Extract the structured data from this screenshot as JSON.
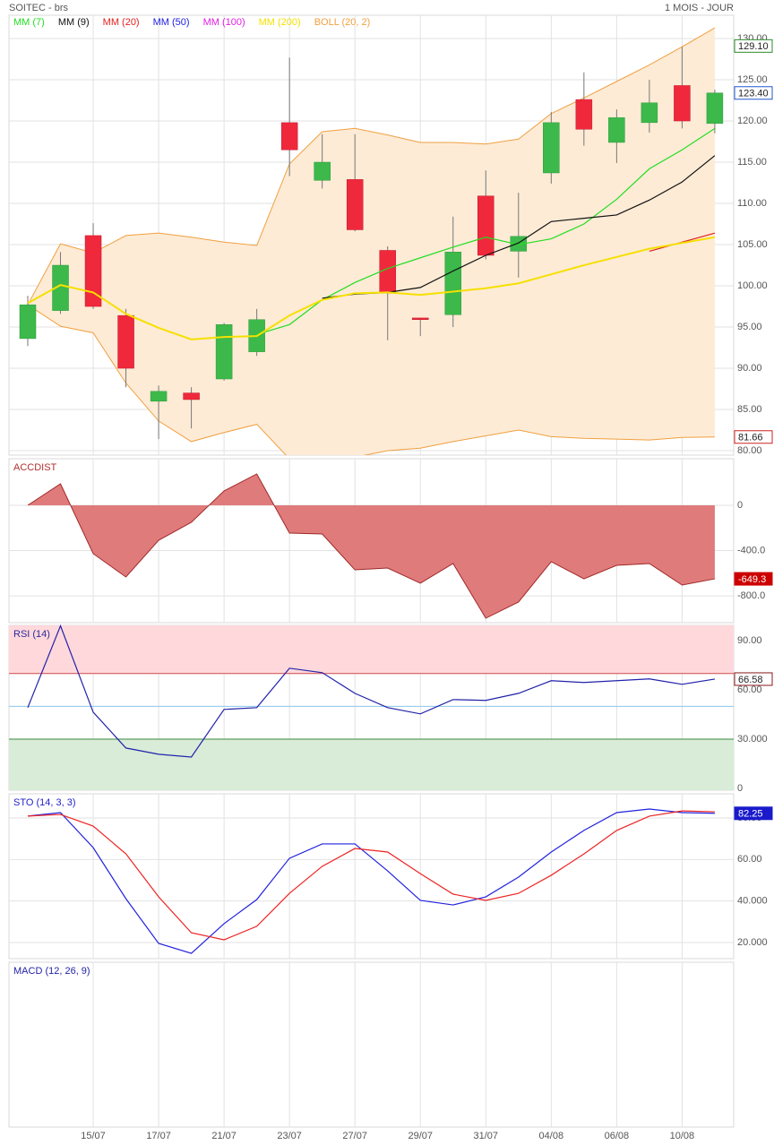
{
  "chart_data": [
    {
      "type": "candlestick",
      "title": "SOITEC - brs",
      "subtitle": "1 MOIS - JOUR",
      "categories": [
        null,
        null,
        "15/07",
        null,
        "17/07",
        null,
        "21/07",
        null,
        "23/07",
        null,
        "27/07",
        null,
        "29/07",
        null,
        "31/07",
        null,
        "04/08",
        null,
        "06/08",
        null,
        "10/08",
        null
      ],
      "open": [
        93.6,
        97.0,
        106.1,
        96.4,
        86.0,
        87.0,
        88.7,
        92.0,
        119.8,
        112.8,
        112.9,
        104.3,
        96.1,
        96.5,
        110.9,
        104.2,
        113.7,
        122.6,
        117.4,
        119.8,
        124.3,
        119.7
      ],
      "high": [
        98.8,
        104.1,
        107.6,
        97.2,
        87.9,
        87.7,
        95.5,
        97.2,
        127.7,
        118.4,
        118.4,
        104.8,
        96.1,
        108.4,
        114.0,
        111.3,
        121.1,
        125.9,
        121.4,
        125.0,
        129.0,
        123.8
      ],
      "low": [
        92.7,
        96.6,
        97.2,
        87.7,
        81.4,
        82.7,
        88.5,
        91.5,
        113.3,
        111.8,
        106.6,
        93.4,
        93.9,
        95.0,
        103.2,
        101.0,
        112.4,
        117.0,
        114.9,
        118.6,
        119.1,
        118.5
      ],
      "close": [
        97.7,
        102.5,
        97.5,
        90.0,
        87.2,
        86.2,
        95.3,
        95.9,
        116.5,
        115.0,
        106.8,
        99.1,
        95.9,
        104.1,
        103.7,
        106.0,
        119.8,
        119.0,
        120.4,
        122.2,
        120.0,
        123.4
      ],
      "up_color": "#3cb94a",
      "down_color": "#f0283c",
      "series": [
        {
          "name": "MM (7)",
          "color": "#22dd22",
          "values": [
            null,
            null,
            null,
            null,
            null,
            null,
            null,
            94.1,
            95.3,
            98.3,
            100.4,
            102.1,
            103.4,
            104.7,
            105.9,
            105.0,
            105.7,
            107.5,
            110.5,
            114.2,
            116.5,
            119.1
          ]
        },
        {
          "name": "MM (9)",
          "color": "#111111",
          "values": [
            null,
            null,
            null,
            null,
            null,
            null,
            null,
            null,
            null,
            98.5,
            99.0,
            99.2,
            99.8,
            101.8,
            103.7,
            105.2,
            107.8,
            108.2,
            108.6,
            110.4,
            112.6,
            115.8
          ]
        },
        {
          "name": "MM (20)",
          "color": "#e02020",
          "values": [
            null,
            null,
            null,
            null,
            null,
            null,
            null,
            null,
            null,
            null,
            null,
            null,
            null,
            null,
            null,
            null,
            null,
            null,
            null,
            104.2,
            105.3,
            106.4
          ]
        },
        {
          "name": "MM (50)",
          "color": "#2020e0",
          "values": [
            null,
            null,
            null,
            null,
            null,
            null,
            null,
            null,
            null,
            null,
            null,
            null,
            null,
            null,
            null,
            null,
            null,
            null,
            null,
            null,
            null,
            null
          ]
        },
        {
          "name": "MM (100)",
          "color": "#e020e0",
          "values": [
            null,
            null,
            null,
            null,
            null,
            null,
            null,
            null,
            null,
            null,
            null,
            null,
            null,
            null,
            null,
            null,
            null,
            null,
            null,
            null,
            null,
            null
          ]
        },
        {
          "name": "MM (200)",
          "color": "#f5e000",
          "values": [
            97.9,
            100.1,
            99.2,
            96.6,
            94.9,
            93.5,
            93.8,
            93.9,
            96.4,
            98.3,
            99.1,
            99.2,
            98.9,
            99.3,
            99.7,
            100.3,
            101.4,
            102.5,
            103.5,
            104.5,
            105.2,
            105.9
          ]
        }
      ],
      "bollinger": {
        "name": "BOLL (20, 2)",
        "color": "#f0a040",
        "fill": "#fdebd6",
        "upper": [
          97.7,
          105.1,
          104.0,
          106.1,
          106.4,
          105.9,
          105.3,
          104.9,
          114.8,
          118.7,
          119.1,
          118.3,
          117.4,
          117.4,
          117.2,
          117.8,
          120.9,
          122.8,
          124.8,
          126.8,
          129.0,
          131.3
        ],
        "lower": [
          97.7,
          95.1,
          94.3,
          88.2,
          83.6,
          81.1,
          82.2,
          83.2,
          79.0,
          78.6,
          79.2,
          80.0,
          80.3,
          81.1,
          81.8,
          82.5,
          81.7,
          81.5,
          81.4,
          81.3,
          81.6,
          81.66
        ]
      },
      "price_tags": [
        {
          "value": 129.1,
          "label": "129.10",
          "color": "#2a8a2a",
          "filled": false
        },
        {
          "value": 123.4,
          "label": "123.40",
          "color": "#2255cc",
          "filled": false
        },
        {
          "value": 81.66,
          "label": "81.66",
          "color": "#cc2222",
          "filled": false
        }
      ],
      "ylim": [
        79.46,
        132.83
      ],
      "yticks": [
        {
          "value": 130,
          "label": "130.00"
        },
        {
          "value": 125,
          "label": "125.00"
        },
        {
          "value": 120,
          "label": "120.00"
        },
        {
          "value": 115,
          "label": "115.00"
        },
        {
          "value": 110,
          "label": "110.00"
        },
        {
          "value": 105,
          "label": "105.00"
        },
        {
          "value": 100,
          "label": "100.00"
        },
        {
          "value": 95,
          "label": "95.00"
        },
        {
          "value": 90,
          "label": "90.00"
        },
        {
          "value": 85,
          "label": "85.00"
        },
        {
          "value": 80,
          "label": "80.00"
        }
      ],
      "grid": true
    },
    {
      "type": "area",
      "title": "ACCDIST",
      "title_color": "#b03030",
      "color": "#e07b7b",
      "line_color": "#a02828",
      "values": [
        0,
        190,
        -427,
        -633,
        -309,
        -150,
        127,
        277,
        -245,
        -253,
        -570,
        -554,
        -688,
        -514,
        -997,
        -854,
        -498,
        -649,
        -530,
        -514,
        -704,
        -649.3
      ],
      "price_tags": [
        {
          "value": -649.3,
          "label": "-649.3",
          "color": "#cc0000",
          "filled": true
        }
      ],
      "ylim": [
        -1036.4,
        411.4
      ],
      "yticks": [
        0,
        {
          "value": -400,
          "label": "-400.0"
        },
        {
          "value": -800,
          "label": "-800.0"
        }
      ],
      "grid": true
    },
    {
      "type": "line",
      "title": "RSI (14)",
      "title_color": "#2a2a9a",
      "series": [
        {
          "color": "#2222aa",
          "values": [
            49.2,
            99,
            46.4,
            24.6,
            20.8,
            19.1,
            48.1,
            49.2,
            73.2,
            70.5,
            57.9,
            49.2,
            45.4,
            54.1,
            53.6,
            57.9,
            65.6,
            64.5,
            65.6,
            66.7,
            63.4,
            66.58
          ]
        }
      ],
      "bands": [
        {
          "from": 70,
          "to": 99.3,
          "color": "#ffd8dc",
          "line_color": "#d04848"
        },
        {
          "from": -1.1,
          "to": 30,
          "color": "#d8ecd8",
          "line_color": "#3a8a3a"
        }
      ],
      "midline": {
        "value": 50,
        "color": "#8cc8e8"
      },
      "price_tags": [
        {
          "value": 66.58,
          "label": "66.58",
          "color": "#8a1a1a",
          "filled": false
        }
      ],
      "ylim": [
        -1.1,
        99.3
      ],
      "yticks": [
        {
          "value": 90,
          "label": "90.00"
        },
        {
          "value": 60,
          "label": "60.00"
        },
        {
          "value": 30,
          "label": "30.000"
        },
        0
      ],
      "grid": false
    },
    {
      "type": "line",
      "title": "STO (14, 3, 3)",
      "title_color": "#2222cc",
      "series": [
        {
          "color": "#2222dd",
          "values": [
            80.9,
            82.6,
            65.7,
            41.1,
            19.6,
            14.8,
            29.1,
            40.7,
            60.6,
            67.5,
            67.5,
            54.5,
            40.3,
            38.1,
            42.0,
            51.5,
            63.6,
            74.0,
            82.6,
            84.3,
            82.6,
            82.25
          ]
        },
        {
          "color": "#ee2222",
          "values": [
            80.9,
            81.7,
            76.1,
            62.7,
            42.0,
            24.7,
            21.3,
            27.8,
            43.7,
            56.7,
            65.3,
            63.6,
            53.2,
            43.3,
            40.3,
            43.7,
            52.4,
            62.7,
            74.0,
            80.9,
            83.4,
            83.0
          ]
        }
      ],
      "price_tags": [
        {
          "value": 82.25,
          "label": "82.25",
          "color": "#1a1acc",
          "filled": true
        }
      ],
      "ylim": [
        12.23,
        91.65
      ],
      "yticks": [
        {
          "value": 80,
          "label": "80.00"
        },
        {
          "value": 60,
          "label": "60.00"
        },
        {
          "value": 40,
          "label": "40.000"
        },
        {
          "value": 20,
          "label": "20.000"
        }
      ],
      "grid": true
    },
    {
      "type": "empty",
      "title": "MACD (12, 26, 9)",
      "title_color": "#2222aa"
    }
  ]
}
